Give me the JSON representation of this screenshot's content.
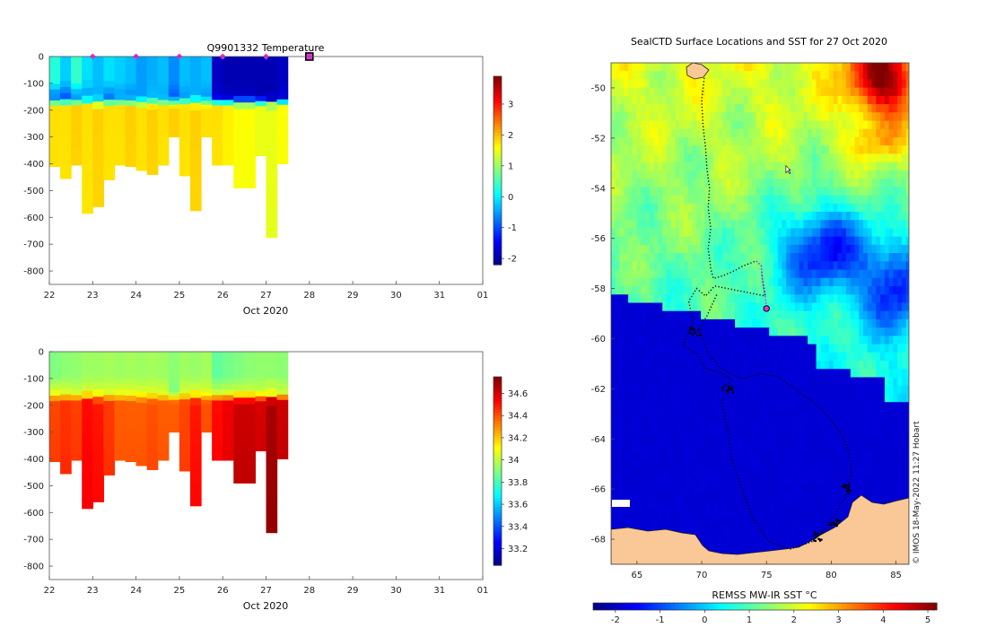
{
  "chart_data": [
    {
      "type": "heatmap",
      "title": "Q9901332  Temperature",
      "xlabel": "Oct 2020",
      "ylabel": "",
      "x_ticks": [
        "22",
        "23",
        "24",
        "25",
        "26",
        "27",
        "28",
        "29",
        "30",
        "31",
        "01"
      ],
      "x_range": [
        22,
        32
      ],
      "y_ticks": [
        0,
        -100,
        -200,
        -300,
        -400,
        -500,
        -600,
        -700,
        -800
      ],
      "y_range": [
        -850,
        0
      ],
      "colorbar_ticks": [
        -2,
        -1,
        0,
        1,
        2,
        3
      ],
      "colorbar_range": [
        -2.2,
        3.9
      ],
      "profile_markers_days": [
        23,
        24,
        25,
        26,
        27
      ],
      "current_position_day": 28,
      "profiles": [
        {
          "day": 22.0,
          "depth": 410,
          "upper": 0.3,
          "mixed": -0.8,
          "deep": 1.8
        },
        {
          "day": 22.25,
          "depth": 455,
          "upper": -0.2,
          "mixed": -0.9,
          "deep": 1.8
        },
        {
          "day": 22.5,
          "depth": 405,
          "upper": 0.4,
          "mixed": -0.6,
          "deep": 1.9
        },
        {
          "day": 22.75,
          "depth": 585,
          "upper": -0.1,
          "mixed": -0.5,
          "deep": 1.8
        },
        {
          "day": 23.0,
          "depth": 560,
          "upper": -0.3,
          "mixed": -0.4,
          "deep": 1.9
        },
        {
          "day": 23.25,
          "depth": 460,
          "upper": -0.1,
          "mixed": -0.7,
          "deep": 1.8
        },
        {
          "day": 23.5,
          "depth": 405,
          "upper": -0.2,
          "mixed": -0.5,
          "deep": 1.8
        },
        {
          "day": 23.75,
          "depth": 410,
          "upper": -0.3,
          "mixed": -0.6,
          "deep": 1.9
        },
        {
          "day": 24.0,
          "depth": 425,
          "upper": -0.5,
          "mixed": -0.5,
          "deep": 1.8
        },
        {
          "day": 24.25,
          "depth": 440,
          "upper": -0.4,
          "mixed": -0.3,
          "deep": 1.9
        },
        {
          "day": 24.5,
          "depth": 405,
          "upper": -0.3,
          "mixed": -0.4,
          "deep": 1.8
        },
        {
          "day": 24.75,
          "depth": 300,
          "upper": -0.6,
          "mixed": -0.9,
          "deep": 1.9
        },
        {
          "day": 25.0,
          "depth": 445,
          "upper": -0.3,
          "mixed": -0.5,
          "deep": 1.8
        },
        {
          "day": 25.25,
          "depth": 575,
          "upper": -0.4,
          "mixed": -0.4,
          "deep": 1.9
        },
        {
          "day": 25.5,
          "depth": 300,
          "upper": -0.3,
          "mixed": -0.5,
          "deep": 1.8
        },
        {
          "day": 25.75,
          "depth": 405,
          "upper": -1.8,
          "mixed": -1.7,
          "deep": 1.8
        },
        {
          "day": 26.0,
          "depth": 405,
          "upper": -1.9,
          "mixed": -1.8,
          "deep": 1.7
        },
        {
          "day": 26.25,
          "depth": 490,
          "upper": -1.9,
          "mixed": -1.8,
          "deep": 1.6
        },
        {
          "day": 26.5,
          "depth": 490,
          "upper": -1.9,
          "mixed": -1.8,
          "deep": 1.6
        },
        {
          "day": 26.75,
          "depth": 370,
          "upper": -1.9,
          "mixed": -1.9,
          "deep": 1.5
        },
        {
          "day": 27.0,
          "depth": 675,
          "upper": -1.9,
          "mixed": -1.9,
          "deep": 1.5
        },
        {
          "day": 27.25,
          "depth": 400,
          "upper": -1.8,
          "mixed": -1.7,
          "deep": 1.6
        }
      ]
    },
    {
      "type": "heatmap",
      "title": "",
      "xlabel": "Oct 2020",
      "ylabel": "",
      "x_ticks": [
        "22",
        "23",
        "24",
        "25",
        "26",
        "27",
        "28",
        "29",
        "30",
        "31",
        "01"
      ],
      "x_range": [
        22,
        32
      ],
      "y_ticks": [
        0,
        -100,
        -200,
        -300,
        -400,
        -500,
        -600,
        -700,
        -800
      ],
      "y_range": [
        -850,
        0
      ],
      "colorbar_ticks": [
        33.2,
        33.4,
        33.6,
        33.8,
        34,
        34.2,
        34.4,
        34.6
      ],
      "colorbar_range": [
        33.05,
        34.75
      ],
      "profiles": [
        {
          "day": 22.0,
          "depth": 410,
          "upper": 33.9,
          "mixed": 34.05,
          "deep": 34.42
        },
        {
          "day": 22.25,
          "depth": 455,
          "upper": 33.92,
          "mixed": 34.05,
          "deep": 34.45
        },
        {
          "day": 22.5,
          "depth": 405,
          "upper": 33.93,
          "mixed": 34.02,
          "deep": 34.43
        },
        {
          "day": 22.75,
          "depth": 585,
          "upper": 33.95,
          "mixed": 34.05,
          "deep": 34.52
        },
        {
          "day": 23.0,
          "depth": 560,
          "upper": 33.95,
          "mixed": 34.05,
          "deep": 34.5
        },
        {
          "day": 23.25,
          "depth": 460,
          "upper": 33.96,
          "mixed": 34.05,
          "deep": 34.44
        },
        {
          "day": 23.5,
          "depth": 405,
          "upper": 33.95,
          "mixed": 34.06,
          "deep": 34.38
        },
        {
          "day": 23.75,
          "depth": 410,
          "upper": 33.96,
          "mixed": 34.05,
          "deep": 34.38
        },
        {
          "day": 24.0,
          "depth": 425,
          "upper": 33.95,
          "mixed": 34.05,
          "deep": 34.38
        },
        {
          "day": 24.25,
          "depth": 440,
          "upper": 33.96,
          "mixed": 34.05,
          "deep": 34.4
        },
        {
          "day": 24.5,
          "depth": 405,
          "upper": 33.95,
          "mixed": 34.04,
          "deep": 34.38
        },
        {
          "day": 24.75,
          "depth": 300,
          "upper": 33.92,
          "mixed": 33.9,
          "deep": 34.38
        },
        {
          "day": 25.0,
          "depth": 445,
          "upper": 33.95,
          "mixed": 34.04,
          "deep": 34.42
        },
        {
          "day": 25.25,
          "depth": 575,
          "upper": 33.94,
          "mixed": 34.05,
          "deep": 34.5
        },
        {
          "day": 25.5,
          "depth": 300,
          "upper": 33.96,
          "mixed": 34.05,
          "deep": 34.4
        },
        {
          "day": 25.75,
          "depth": 405,
          "upper": 33.85,
          "mixed": 34.0,
          "deep": 34.52
        },
        {
          "day": 26.0,
          "depth": 405,
          "upper": 33.88,
          "mixed": 34.02,
          "deep": 34.56
        },
        {
          "day": 26.25,
          "depth": 490,
          "upper": 33.9,
          "mixed": 34.02,
          "deep": 34.62
        },
        {
          "day": 26.5,
          "depth": 490,
          "upper": 33.92,
          "mixed": 34.03,
          "deep": 34.62
        },
        {
          "day": 26.75,
          "depth": 370,
          "upper": 33.93,
          "mixed": 34.02,
          "deep": 34.6
        },
        {
          "day": 27.0,
          "depth": 675,
          "upper": 33.93,
          "mixed": 34.05,
          "deep": 34.68
        },
        {
          "day": 27.25,
          "depth": 400,
          "upper": 33.92,
          "mixed": 34.02,
          "deep": 34.62
        }
      ]
    },
    {
      "type": "heatmap",
      "title": "SealCTD Surface Locations and SST for 27 Oct 2020",
      "xlabel": "",
      "ylabel": "",
      "x_ticks": [
        65,
        70,
        75,
        80,
        85
      ],
      "x_range": [
        63,
        86
      ],
      "y_ticks": [
        -50,
        -52,
        -54,
        -56,
        -58,
        -60,
        -62,
        -64,
        -66,
        -68
      ],
      "y_range": [
        -69,
        -49
      ],
      "colorbar_label": "REMSS MW-IR SST °C",
      "colorbar_ticks": [
        -2,
        -1,
        0,
        1,
        2,
        3,
        4,
        5
      ],
      "colorbar_range": [
        -2.5,
        5.2
      ],
      "current_position": {
        "lon": 75.0,
        "lat": -58.8
      },
      "credit": "© IMOS 18-May-2022 11:27 Hobart"
    }
  ]
}
